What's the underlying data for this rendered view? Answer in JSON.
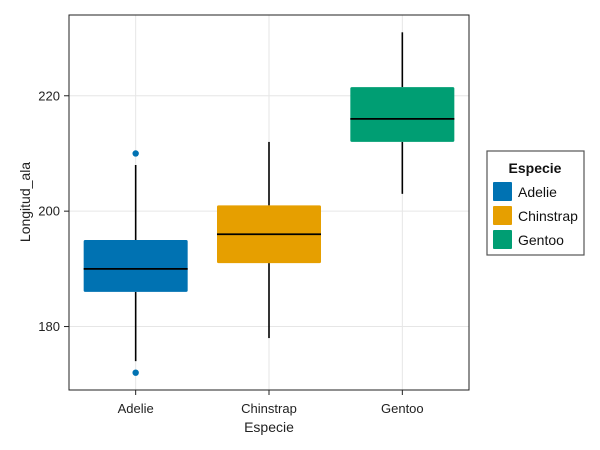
{
  "chart_data": {
    "type": "box",
    "xlabel": "Especie",
    "ylabel": "Longitud_ala",
    "categories": [
      "Adelie",
      "Chinstrap",
      "Gentoo"
    ],
    "ylim": [
      169,
      234
    ],
    "yticks": [
      180,
      200,
      220
    ],
    "grid": true,
    "legend": {
      "title": "Especie",
      "position": "right",
      "entries": [
        "Adelie",
        "Chinstrap",
        "Gentoo"
      ]
    },
    "colors": [
      "#0072B2",
      "#E69F00",
      "#009E73"
    ],
    "boxes": [
      {
        "category": "Adelie",
        "whisker_low": 174,
        "q1": 186,
        "median": 190,
        "q3": 195,
        "whisker_high": 208,
        "outliers": [
          172,
          210
        ]
      },
      {
        "category": "Chinstrap",
        "whisker_low": 178,
        "q1": 191,
        "median": 196,
        "q3": 201,
        "whisker_high": 212,
        "outliers": []
      },
      {
        "category": "Gentoo",
        "whisker_low": 203,
        "q1": 212,
        "median": 216,
        "q3": 221.5,
        "whisker_high": 231,
        "outliers": []
      }
    ]
  }
}
